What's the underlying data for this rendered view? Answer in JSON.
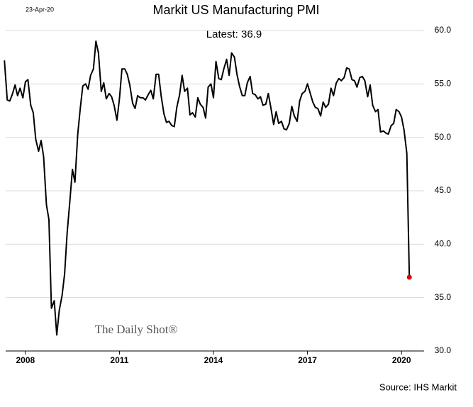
{
  "chart_data": {
    "type": "line",
    "title": "Markit US Manufacturing PMI",
    "date": "23-Apr-20",
    "annotation": "Latest:  36.9",
    "watermark": "The Daily Shot®",
    "source": "Source: IHS Markit",
    "x": [
      2007.33,
      2007.42,
      2007.5,
      2007.58,
      2007.67,
      2007.75,
      2007.83,
      2007.92,
      2008,
      2008.08,
      2008.17,
      2008.25,
      2008.33,
      2008.42,
      2008.5,
      2008.58,
      2008.67,
      2008.75,
      2008.83,
      2008.92,
      2009,
      2009.08,
      2009.17,
      2009.25,
      2009.33,
      2009.42,
      2009.5,
      2009.58,
      2009.67,
      2009.75,
      2009.83,
      2009.92,
      2010,
      2010.08,
      2010.17,
      2010.25,
      2010.33,
      2010.42,
      2010.5,
      2010.58,
      2010.67,
      2010.75,
      2010.83,
      2010.92,
      2011,
      2011.08,
      2011.17,
      2011.25,
      2011.33,
      2011.42,
      2011.5,
      2011.58,
      2011.67,
      2011.75,
      2011.83,
      2011.92,
      2012,
      2012.08,
      2012.17,
      2012.25,
      2012.33,
      2012.42,
      2012.5,
      2012.58,
      2012.67,
      2012.75,
      2012.83,
      2012.92,
      2013,
      2013.08,
      2013.17,
      2013.25,
      2013.33,
      2013.42,
      2013.5,
      2013.58,
      2013.67,
      2013.75,
      2013.83,
      2013.92,
      2014,
      2014.08,
      2014.17,
      2014.25,
      2014.33,
      2014.42,
      2014.5,
      2014.58,
      2014.67,
      2014.75,
      2014.83,
      2014.92,
      2015,
      2015.08,
      2015.17,
      2015.25,
      2015.33,
      2015.42,
      2015.5,
      2015.58,
      2015.67,
      2015.75,
      2015.83,
      2015.92,
      2016,
      2016.08,
      2016.17,
      2016.25,
      2016.33,
      2016.42,
      2016.5,
      2016.58,
      2016.67,
      2016.75,
      2016.83,
      2016.92,
      2017,
      2017.08,
      2017.17,
      2017.25,
      2017.33,
      2017.42,
      2017.5,
      2017.58,
      2017.67,
      2017.75,
      2017.83,
      2017.92,
      2018,
      2018.08,
      2018.17,
      2018.25,
      2018.33,
      2018.42,
      2018.5,
      2018.58,
      2018.67,
      2018.75,
      2018.83,
      2018.92,
      2019,
      2019.08,
      2019.17,
      2019.25,
      2019.33,
      2019.42,
      2019.5,
      2019.58,
      2019.67,
      2019.75,
      2019.83,
      2019.92,
      2020,
      2020.08,
      2020.17,
      2020.25
    ],
    "series": [
      {
        "color": "#000000",
        "values": [
          57.2,
          53.5,
          53.4,
          54.0,
          54.9,
          53.9,
          54.6,
          53.7,
          55.2,
          55.4,
          53.0,
          52.3,
          49.8,
          48.7,
          49.7,
          48.2,
          43.7,
          42.3,
          34.0,
          34.7,
          31.5,
          33.8,
          35.2,
          37.2,
          41.0,
          44.1,
          47.0,
          45.8,
          50.3,
          52.7,
          54.8,
          55.0,
          54.5,
          55.8,
          56.4,
          59.0,
          57.9,
          54.3,
          55.1,
          53.6,
          54.1,
          53.8,
          53.0,
          51.6,
          53.6,
          56.4,
          56.4,
          55.9,
          54.9,
          53.2,
          52.7,
          53.9,
          53.7,
          53.7,
          53.5,
          54.0,
          54.4,
          53.6,
          55.9,
          55.9,
          53.9,
          52.2,
          51.4,
          51.5,
          51.1,
          51.0,
          52.8,
          54.0,
          55.8,
          54.3,
          54.6,
          52.1,
          52.3,
          51.9,
          53.7,
          53.1,
          52.8,
          51.8,
          54.7,
          55.0,
          53.7,
          57.1,
          55.5,
          55.4,
          56.4,
          57.3,
          55.8,
          57.9,
          57.5,
          55.9,
          54.8,
          53.9,
          53.9,
          55.1,
          55.7,
          54.1,
          54.0,
          53.6,
          53.8,
          53.0,
          53.1,
          54.1,
          52.8,
          51.2,
          52.4,
          51.3,
          51.5,
          50.8,
          50.7,
          51.3,
          52.9,
          52.0,
          51.5,
          53.4,
          54.1,
          54.3,
          55.0,
          54.2,
          53.3,
          52.8,
          52.7,
          52.0,
          53.3,
          52.8,
          53.1,
          54.6,
          53.9,
          55.1,
          55.5,
          55.3,
          55.6,
          56.5,
          56.4,
          55.4,
          55.3,
          54.7,
          55.6,
          55.7,
          55.3,
          53.8,
          54.9,
          53.0,
          52.4,
          52.6,
          50.5,
          50.6,
          50.4,
          50.3,
          51.1,
          51.3,
          52.6,
          52.4,
          51.9,
          50.7,
          48.5,
          36.9
        ]
      }
    ],
    "latest_color": "#e00000",
    "xlim": [
      2007.37,
      2020.72
    ],
    "xticks": [
      2008,
      2011,
      2014,
      2017,
      2020
    ],
    "ylim": [
      30,
      60
    ],
    "yticks": [
      {
        "value": 30,
        "label": "30.0"
      },
      {
        "value": 35,
        "label": "35.0"
      },
      {
        "value": 40,
        "label": "40.0"
      },
      {
        "value": 45,
        "label": "45.0"
      },
      {
        "value": 50,
        "label": "50.0"
      },
      {
        "value": 55,
        "label": "55.0"
      },
      {
        "value": 60,
        "label": "60.0"
      }
    ],
    "grid": true
  }
}
